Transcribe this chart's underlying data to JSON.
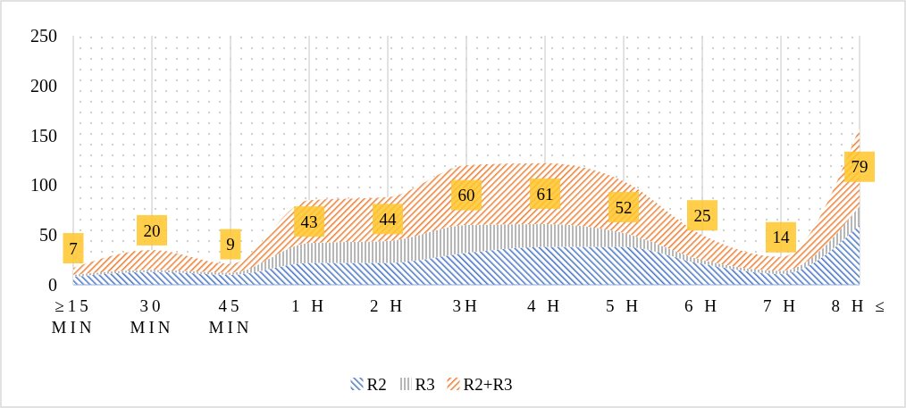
{
  "chart_data": {
    "type": "area",
    "stacked": true,
    "categories": [
      "≥15 MIN",
      "30 MIN",
      "45 MIN",
      "1 H",
      "2 H",
      "3H",
      "4 H",
      "5 H",
      "6 H",
      "7 H",
      "8 H ≤"
    ],
    "series": [
      {
        "name": "R2",
        "color": "#4472c4",
        "values": [
          8,
          13,
          10,
          22,
          22,
          32,
          38,
          38,
          21,
          11,
          60
        ]
      },
      {
        "name": "R3",
        "color": "#a5a5a5",
        "values": [
          2,
          2,
          2,
          20,
          22,
          28,
          23,
          14,
          4,
          3,
          19
        ]
      },
      {
        "name": "R2+R3",
        "color": "#ed7d31",
        "values": [
          7,
          20,
          9,
          43,
          44,
          60,
          61,
          52,
          25,
          14,
          79
        ],
        "value_labels": [
          "7",
          "20",
          "9",
          "43",
          "44",
          "60",
          "61",
          "52",
          "25",
          "14",
          "79"
        ]
      }
    ],
    "ylim": [
      0,
      250
    ],
    "yticks": [
      0,
      50,
      100,
      150,
      200,
      250
    ],
    "grid": "x",
    "legend": "bottom"
  }
}
